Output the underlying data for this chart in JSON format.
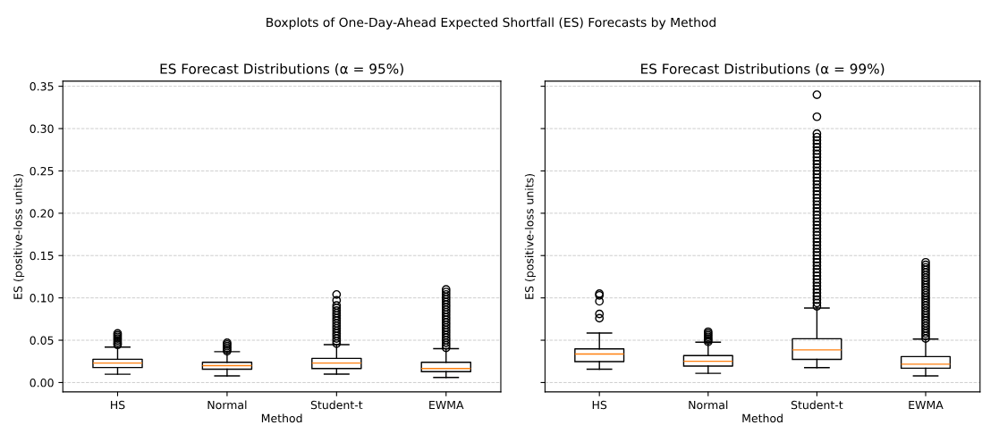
{
  "chart_data": [
    {
      "type": "box",
      "title": "ES Forecast Distributions (α = 95%)",
      "xlabel": "Method",
      "ylabel": "ES (positive-loss units)",
      "annotations": [
        "Boxplots of One-Day-Ahead Expected Shortfall (ES) Forecasts by Method"
      ],
      "categories": [
        "HS",
        "Normal",
        "Student-t",
        "EWMA"
      ],
      "ylim": [
        -0.011,
        0.356
      ],
      "yticks": [
        {
          "value": 0,
          "label": "0.00"
        },
        0.05,
        {
          "value": 0.1,
          "label": "0.10"
        },
        0.15,
        {
          "value": 0.2,
          "label": "0.20"
        },
        0.25,
        {
          "value": 0.3,
          "label": "0.30"
        },
        0.35
      ],
      "grid": "y",
      "boxes": [
        {
          "low": 0.0098,
          "q1": 0.0177,
          "median": 0.023,
          "q3": 0.0275,
          "high": 0.0418,
          "outliers": [
            0.0445,
            0.046,
            0.048,
            0.05,
            0.052,
            0.054,
            0.056,
            0.058
          ]
        },
        {
          "low": 0.0079,
          "q1": 0.0158,
          "median": 0.02,
          "q3": 0.024,
          "high": 0.0365,
          "outliers": [
            0.037,
            0.039,
            0.041,
            0.043,
            0.045,
            0.047
          ]
        },
        {
          "low": 0.01,
          "q1": 0.0166,
          "median": 0.023,
          "q3": 0.0286,
          "high": 0.0448,
          "outliers": [
            0.046,
            0.049,
            0.052,
            0.055,
            0.058,
            0.061,
            0.064,
            0.067,
            0.07,
            0.073,
            0.076,
            0.079,
            0.082,
            0.085,
            0.088,
            0.091,
            0.097,
            0.104
          ]
        },
        {
          "low": 0.006,
          "q1": 0.0128,
          "median": 0.0166,
          "q3": 0.024,
          "high": 0.04,
          "outliers": [
            0.041,
            0.044,
            0.047,
            0.05,
            0.053,
            0.056,
            0.059,
            0.062,
            0.065,
            0.068,
            0.071,
            0.074,
            0.077,
            0.08,
            0.083,
            0.086,
            0.089,
            0.092,
            0.095,
            0.098,
            0.101,
            0.104,
            0.107,
            0.11
          ]
        }
      ]
    },
    {
      "type": "box",
      "title": "ES Forecast Distributions (α = 99%)",
      "xlabel": "Method",
      "ylabel": "ES (positive-loss units)",
      "categories": [
        "HS",
        "Normal",
        "Student-t",
        "EWMA"
      ],
      "ylim": [
        -0.011,
        0.356
      ],
      "yticks": [
        {
          "value": 0,
          "label": null
        },
        {
          "value": 0.05,
          "label": null
        },
        {
          "value": 0.1,
          "label": null
        },
        {
          "value": 0.15,
          "label": null
        },
        {
          "value": 0.2,
          "label": null
        },
        {
          "value": 0.25,
          "label": null
        },
        {
          "value": 0.3,
          "label": null
        },
        {
          "value": 0.35,
          "label": null
        }
      ],
      "grid": "y",
      "tick_labels": "x",
      "boxes": [
        {
          "low": 0.0157,
          "q1": 0.0247,
          "median": 0.0337,
          "q3": 0.0397,
          "high": 0.0585,
          "outliers": [
            0.076,
            0.081,
            0.096,
            0.103,
            0.105
          ]
        },
        {
          "low": 0.0109,
          "q1": 0.0195,
          "median": 0.0251,
          "q3": 0.0319,
          "high": 0.0476,
          "outliers": [
            0.048,
            0.05,
            0.052,
            0.054,
            0.056,
            0.058,
            0.06
          ]
        },
        {
          "low": 0.0176,
          "q1": 0.0274,
          "median": 0.0386,
          "q3": 0.0517,
          "high": 0.088,
          "outliers": [
            0.09,
            0.094,
            0.098,
            0.102,
            0.106,
            0.11,
            0.114,
            0.118,
            0.122,
            0.126,
            0.13,
            0.134,
            0.138,
            0.142,
            0.146,
            0.15,
            0.154,
            0.158,
            0.162,
            0.166,
            0.17,
            0.174,
            0.178,
            0.182,
            0.186,
            0.19,
            0.194,
            0.198,
            0.202,
            0.206,
            0.21,
            0.214,
            0.218,
            0.222,
            0.226,
            0.23,
            0.234,
            0.238,
            0.242,
            0.246,
            0.25,
            0.254,
            0.258,
            0.262,
            0.266,
            0.27,
            0.274,
            0.278,
            0.282,
            0.286,
            0.29,
            0.294,
            0.314,
            0.34
          ]
        },
        {
          "low": 0.0079,
          "q1": 0.0169,
          "median": 0.0217,
          "q3": 0.0307,
          "high": 0.0514,
          "outliers": [
            0.052,
            0.055,
            0.058,
            0.061,
            0.064,
            0.067,
            0.07,
            0.073,
            0.076,
            0.079,
            0.082,
            0.085,
            0.088,
            0.091,
            0.094,
            0.097,
            0.1,
            0.103,
            0.106,
            0.109,
            0.112,
            0.115,
            0.118,
            0.121,
            0.124,
            0.127,
            0.13,
            0.133,
            0.136,
            0.139,
            0.142
          ]
        }
      ]
    }
  ]
}
